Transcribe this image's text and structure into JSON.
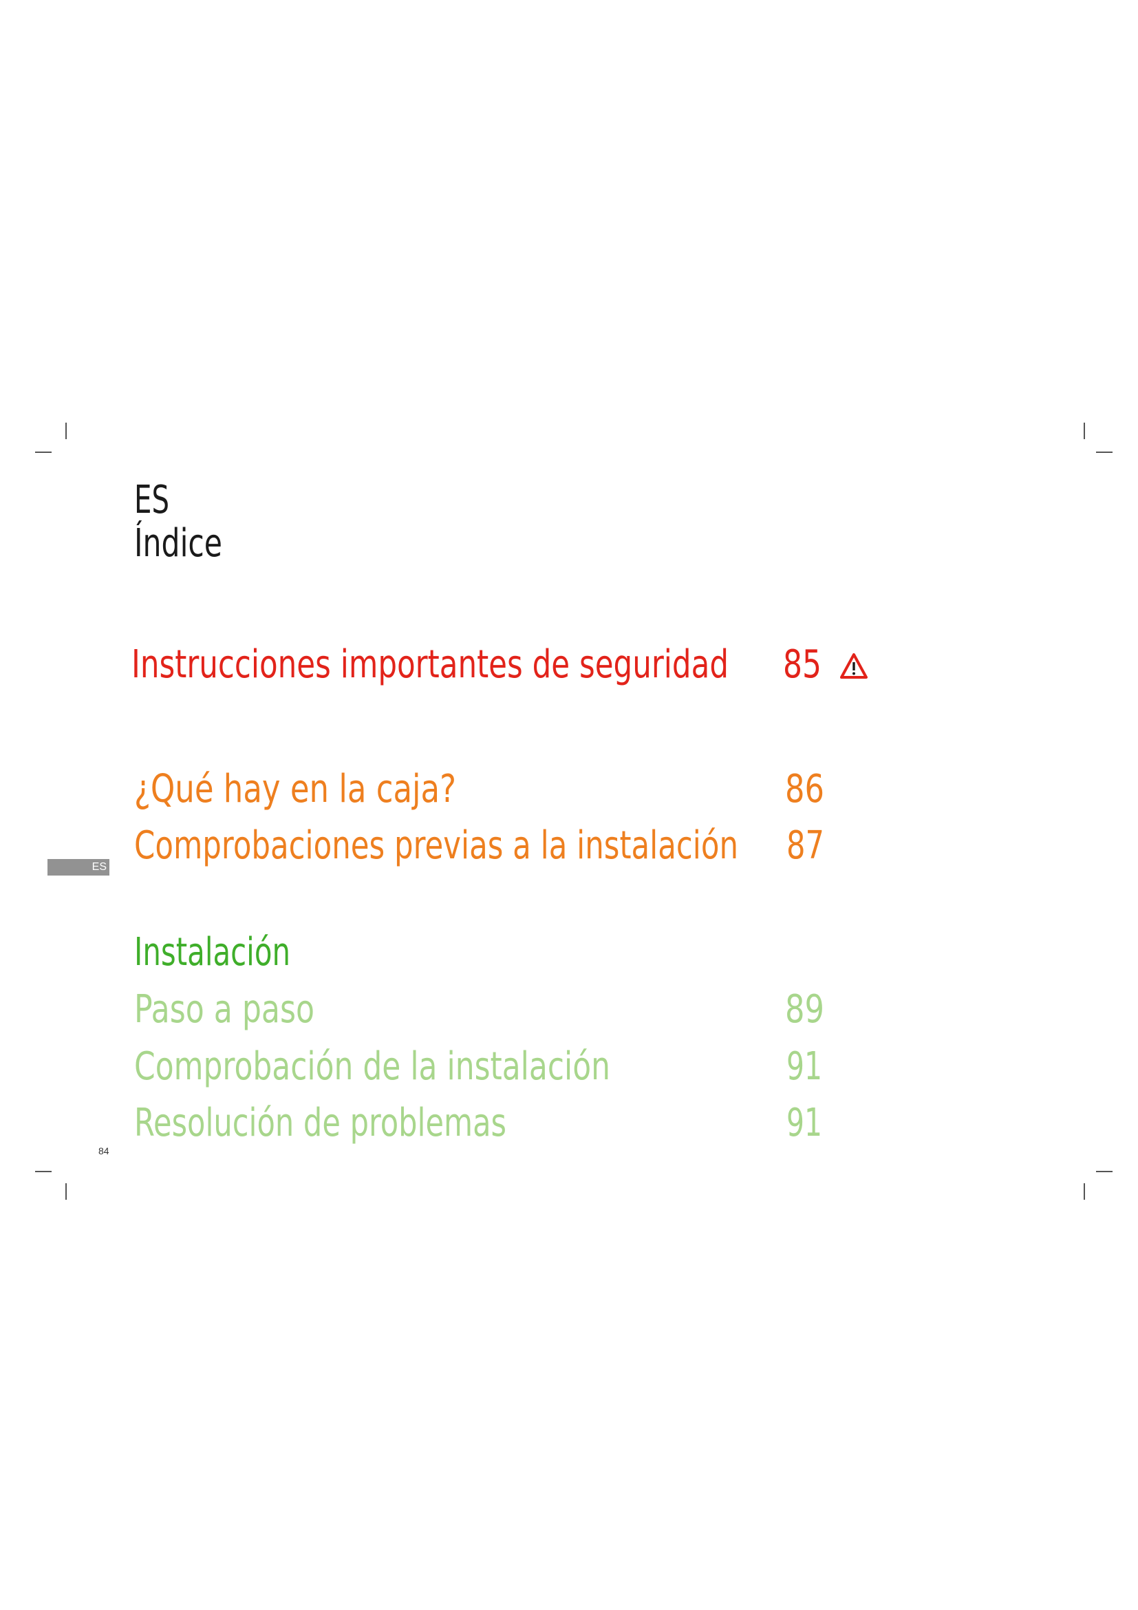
{
  "header": {
    "language": "ES",
    "title": "Índice"
  },
  "toc": {
    "safety": {
      "label": "Instrucciones importantes de seguridad",
      "page": "85",
      "icon": "warning-triangle-icon",
      "color": "#e2231a"
    },
    "prep": [
      {
        "label": "¿Qué hay en la caja?",
        "page": "86"
      },
      {
        "label": "Comprobaciones previas a la instalación",
        "page": "87"
      }
    ],
    "prep_color": "#ee7f1f",
    "installation": {
      "heading": "Instalación",
      "heading_color": "#3fae2a",
      "items_color": "#a8d68c",
      "items": [
        {
          "label": "Paso a paso",
          "page": "89"
        },
        {
          "label": "Comprobación de la instalación",
          "page": "91"
        },
        {
          "label": "Resolución de problemas",
          "page": "91"
        }
      ]
    }
  },
  "side_tab": {
    "label": "ES"
  },
  "page_number": "84"
}
